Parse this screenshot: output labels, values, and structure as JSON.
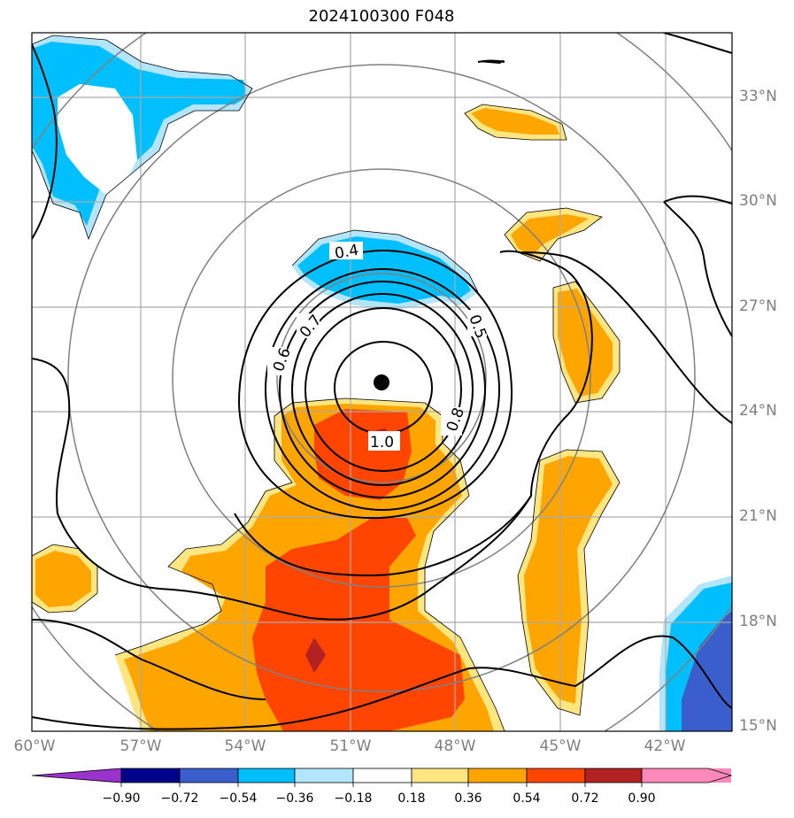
{
  "title": "2024100300 F048",
  "latitude_labels": [
    "33°N",
    "30°N",
    "27°N",
    "24°N",
    "21°N",
    "18°N",
    "15°N"
  ],
  "longitude_labels": [
    "60°W",
    "57°W",
    "54°W",
    "51°W",
    "48°W",
    "45°W",
    "42°W"
  ],
  "contour_labels": [
    "0.4",
    "0.5",
    "0.6",
    "0.7",
    "0.8",
    "1.0"
  ],
  "colorbar": {
    "tick_labels": [
      "−0.90",
      "−0.72",
      "−0.54",
      "−0.36",
      "−0.18",
      "0.18",
      "0.36",
      "0.54",
      "0.72",
      "0.90"
    ],
    "colors": [
      "#9933cc",
      "#00008b",
      "#3a5fcd",
      "#00bfff",
      "#b3e5fc",
      "#ffffff",
      "#ffe680",
      "#ffa500",
      "#ff4500",
      "#b22222",
      "#ff88bb"
    ]
  },
  "map_data": {
    "extent": {
      "lon_min": -60,
      "lon_max": -40,
      "lat_min": 15,
      "lat_max": 35
    },
    "storm_center": {
      "lon": -50,
      "lat": 24.8
    },
    "range_rings": "concentric circles around storm center"
  }
}
